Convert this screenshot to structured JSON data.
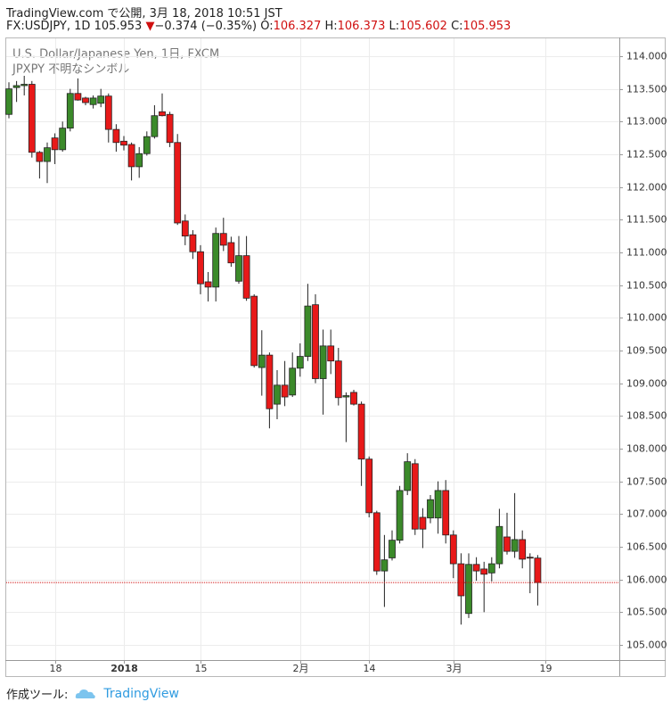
{
  "header": {
    "line1": "TradingView.com で公開, 3月 18, 2018 10:51 JST",
    "symbol": "FX:USDJPY, 1D",
    "price": "105.953",
    "arrow": "▼",
    "change": "−0.374 (−0.35%)",
    "o_label": "O:",
    "o": "106.327",
    "h_label": "H:",
    "h": "106.373",
    "l_label": "L:",
    "l": "105.602",
    "c_label": "C:",
    "c": "105.953"
  },
  "chart_data": {
    "type": "candlestick",
    "title": "U.S. Dollar/Japanese Yen, 1日, FXCM",
    "subtitle": "JPXPY 不明なシンボル",
    "categories": [
      null,
      null,
      null,
      null,
      null,
      null,
      "18",
      null,
      null,
      null,
      null,
      null,
      null,
      null,
      null,
      "2018",
      null,
      null,
      null,
      null,
      null,
      null,
      null,
      null,
      null,
      "15",
      null,
      null,
      null,
      null,
      null,
      null,
      null,
      null,
      null,
      null,
      null,
      null,
      "2月",
      null,
      null,
      null,
      null,
      null,
      null,
      null,
      null,
      "14",
      null,
      null,
      null,
      null,
      null,
      null,
      null,
      null,
      null,
      null,
      "3月",
      null,
      null,
      null,
      null,
      null,
      null,
      null,
      null,
      null,
      null,
      null,
      "19"
    ],
    "open": [
      113.11,
      113.52,
      113.55,
      113.57,
      112.53,
      112.39,
      112.75,
      112.57,
      112.9,
      113.43,
      113.36,
      113.26,
      113.28,
      113.39,
      112.88,
      112.7,
      112.65,
      112.31,
      112.51,
      112.77,
      113.15,
      113.11,
      112.68,
      111.48,
      111.27,
      111.01,
      110.55,
      110.47,
      111.29,
      111.15,
      110.56,
      110.95,
      110.33,
      109.24,
      109.43,
      108.68,
      108.97,
      108.82,
      109.23,
      109.41,
      110.2,
      109.07,
      109.57,
      109.34,
      108.79,
      108.86,
      108.68,
      107.84,
      107.02,
      106.13,
      106.33,
      106.6,
      107.36,
      107.77,
      106.95,
      106.94,
      106.94,
      107.36,
      106.68,
      106.24,
      105.48,
      106.23,
      106.16,
      106.1,
      106.24,
      106.65,
      106.43,
      106.61,
      106.34,
      106.327,
      null
    ],
    "high": [
      113.6,
      113.62,
      113.7,
      113.62,
      112.55,
      112.68,
      112.82,
      113.0,
      113.5,
      113.66,
      113.38,
      113.4,
      113.5,
      113.43,
      112.96,
      112.78,
      112.68,
      112.61,
      112.85,
      113.25,
      113.43,
      113.15,
      112.81,
      111.58,
      111.34,
      111.11,
      110.7,
      111.38,
      111.53,
      111.24,
      111.25,
      111.25,
      110.36,
      109.81,
      109.47,
      109.2,
      109.34,
      109.47,
      109.61,
      110.52,
      110.36,
      109.82,
      109.82,
      109.54,
      108.86,
      108.9,
      108.72,
      107.88,
      107.05,
      106.68,
      106.75,
      107.43,
      107.93,
      107.84,
      107.09,
      107.29,
      107.5,
      107.52,
      106.75,
      106.4,
      106.4,
      106.34,
      106.27,
      106.34,
      107.08,
      107.02,
      107.32,
      106.75,
      106.4,
      106.373,
      null
    ],
    "low": [
      113.05,
      113.3,
      113.4,
      112.45,
      112.13,
      112.06,
      112.35,
      112.54,
      112.85,
      113.32,
      113.25,
      113.2,
      113.22,
      112.68,
      112.54,
      112.56,
      112.1,
      112.14,
      112.48,
      112.74,
      113.08,
      112.61,
      111.42,
      111.11,
      110.9,
      110.36,
      110.25,
      110.25,
      111.02,
      110.78,
      110.52,
      110.26,
      109.24,
      108.81,
      108.31,
      108.45,
      108.65,
      108.79,
      109.1,
      109.34,
      109.0,
      108.52,
      109.14,
      108.66,
      108.1,
      108.66,
      107.43,
      106.95,
      106.07,
      105.58,
      106.29,
      106.55,
      107.29,
      106.68,
      106.48,
      106.86,
      106.7,
      106.55,
      106.02,
      105.31,
      105.41,
      105.98,
      105.5,
      105.97,
      106.17,
      106.38,
      106.33,
      106.17,
      105.79,
      105.602,
      null
    ],
    "close": [
      113.5,
      113.55,
      113.57,
      112.53,
      112.39,
      112.6,
      112.57,
      112.9,
      113.43,
      113.33,
      113.29,
      113.36,
      113.39,
      112.88,
      112.68,
      112.64,
      112.31,
      112.51,
      112.77,
      113.09,
      113.09,
      112.68,
      111.45,
      111.25,
      111.01,
      110.52,
      110.47,
      111.29,
      111.11,
      110.84,
      110.95,
      110.3,
      109.27,
      109.43,
      108.61,
      108.97,
      108.79,
      109.23,
      109.41,
      110.18,
      109.07,
      109.57,
      109.34,
      108.78,
      108.81,
      108.68,
      107.84,
      107.02,
      106.13,
      106.3,
      106.6,
      107.36,
      107.8,
      106.77,
      106.77,
      107.22,
      107.36,
      106.68,
      106.24,
      105.75,
      106.23,
      106.13,
      106.08,
      106.24,
      106.81,
      106.43,
      106.61,
      106.31,
      106.33,
      105.953,
      null
    ],
    "up_color": "#3b8a2a",
    "down_color": "#e81919",
    "last_price_color": "#d01010",
    "ylim": [
      104.768,
      114.286
    ],
    "yticks": [
      {
        "value": 105,
        "label": "105.000"
      },
      {
        "value": 105.5,
        "label": "105.500"
      },
      {
        "value": 106,
        "label": "106.000"
      },
      {
        "value": 106.5,
        "label": "106.500"
      },
      {
        "value": 107,
        "label": "107.000"
      },
      {
        "value": 107.5,
        "label": "107.500"
      },
      {
        "value": 108,
        "label": "108.000"
      },
      {
        "value": 108.5,
        "label": "108.500"
      },
      {
        "value": 109,
        "label": "109.000"
      },
      {
        "value": 109.5,
        "label": "109.500"
      },
      {
        "value": 110,
        "label": "110.000"
      },
      {
        "value": 110.5,
        "label": "110.500"
      },
      {
        "value": 111,
        "label": "111.000"
      },
      {
        "value": 111.5,
        "label": "111.500"
      },
      {
        "value": 112,
        "label": "112.000"
      },
      {
        "value": 112.5,
        "label": "112.500"
      },
      {
        "value": 113,
        "label": "113.000"
      },
      {
        "value": 113.5,
        "label": "113.500"
      },
      {
        "value": 114,
        "label": "114.000"
      }
    ],
    "grid": true
  },
  "footer": {
    "label": "作成ツール:",
    "brand": "TradingView"
  }
}
